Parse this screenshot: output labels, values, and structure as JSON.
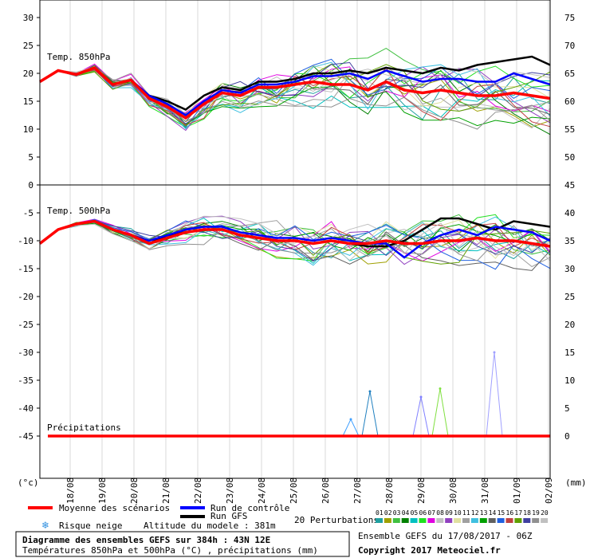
{
  "chart_data": {
    "type": "line",
    "panel_top_label": "Temp. 850hPa",
    "panel_mid_label": "Temp. 500hPa",
    "precip_label": "Précipitations",
    "left_unit": "(°c)",
    "right_unit": "(mm)",
    "left_ticks_top": [
      "30",
      "25",
      "20",
      "15",
      "10",
      "5",
      "0"
    ],
    "left_ticks_bottom": [
      "-5",
      "-10",
      "-15",
      "-20",
      "-25",
      "-30",
      "-35",
      "-40",
      "-45"
    ],
    "right_ticks_top": [
      "75",
      "70",
      "65",
      "60",
      "55",
      "50",
      "45"
    ],
    "right_ticks_bottom": [
      "40",
      "35",
      "30",
      "25",
      "20",
      "15",
      "10",
      "5",
      "0"
    ],
    "x_dates": [
      "18/08",
      "19/08",
      "20/08",
      "21/08",
      "22/08",
      "23/08",
      "24/08",
      "25/08",
      "26/08",
      "27/08",
      "28/08",
      "29/08",
      "30/08",
      "31/08",
      "01/09",
      "02/09"
    ],
    "t850": {
      "mean": [
        18.5,
        20.5,
        19.8,
        21.0,
        18.0,
        18.8,
        15.5,
        14.0,
        12.0,
        14.5,
        16.5,
        16.0,
        17.5,
        17.5,
        18.0,
        18.5,
        18.0,
        18.0,
        17.0,
        18.5,
        17.0,
        16.5,
        17.0,
        16.5,
        16.0,
        16.0,
        16.5,
        16.0,
        15.5
      ],
      "control": [
        18.5,
        20.5,
        19.8,
        21.0,
        18.0,
        18.8,
        16.0,
        14.5,
        12.5,
        15.0,
        17.0,
        16.5,
        18.0,
        18.0,
        18.5,
        19.5,
        19.5,
        20.0,
        19.0,
        20.5,
        19.5,
        18.5,
        19.0,
        19.0,
        18.5,
        18.5,
        20.0,
        19.0,
        18.0
      ],
      "gfs": [
        18.5,
        20.5,
        19.8,
        21.0,
        18.0,
        18.8,
        16.0,
        15.0,
        13.5,
        16.0,
        17.5,
        17.0,
        18.5,
        18.5,
        19.0,
        20.0,
        20.0,
        20.5,
        20.0,
        21.0,
        20.5,
        20.0,
        21.0,
        20.5,
        21.5,
        22.0,
        22.5,
        23.0,
        21.5
      ]
    },
    "t500": {
      "mean": [
        -10.5,
        -8.0,
        -7.0,
        -6.5,
        -8.0,
        -9.0,
        -10.5,
        -9.5,
        -8.5,
        -8.0,
        -8.0,
        -9.0,
        -9.5,
        -10.0,
        -10.0,
        -10.5,
        -10.0,
        -10.5,
        -10.5,
        -10.0,
        -10.5,
        -10.5,
        -10.0,
        -10.0,
        -9.5,
        -10.0,
        -10.0,
        -10.5,
        -11.0
      ],
      "control": [
        -10.5,
        -8.0,
        -7.0,
        -6.5,
        -8.0,
        -9.0,
        -10.0,
        -9.0,
        -8.0,
        -7.5,
        -7.5,
        -8.5,
        -9.0,
        -9.5,
        -9.5,
        -10.0,
        -9.5,
        -10.0,
        -10.5,
        -10.5,
        -13.0,
        -10.5,
        -9.0,
        -8.0,
        -9.0,
        -7.5,
        -8.0,
        -8.5,
        -10.0
      ],
      "gfs": [
        -10.5,
        -8.0,
        -7.0,
        -6.5,
        -8.0,
        -9.0,
        -10.5,
        -9.0,
        -8.5,
        -8.0,
        -8.0,
        -9.0,
        -9.5,
        -10.0,
        -10.0,
        -10.5,
        -10.0,
        -10.5,
        -11.0,
        -11.0,
        -10.0,
        -8.0,
        -6.0,
        -6.0,
        -7.0,
        -8.0,
        -6.5,
        -7.0,
        -7.5
      ]
    },
    "precip_peaks_mm": [
      {
        "day": 9.4,
        "mm": 8.0,
        "color": "#2080c0"
      },
      {
        "day": 11.0,
        "mm": 7.0,
        "color": "#8080ff"
      },
      {
        "day": 11.6,
        "mm": 8.5,
        "color": "#80e040"
      },
      {
        "day": 13.3,
        "mm": 15.0,
        "color": "#a0a0ff"
      },
      {
        "day": 8.8,
        "mm": 3.0,
        "color": "#40a0ff"
      }
    ]
  },
  "legend": {
    "mean_label": "Moyenne des scénarios",
    "control_label": "Run de contrôle",
    "gfs_label": "Run GFS",
    "perturb_label": "20 Perturbations",
    "perturb_numbers": [
      "01",
      "02",
      "03",
      "04",
      "05",
      "06",
      "07",
      "08",
      "09",
      "10",
      "11",
      "12",
      "13",
      "14",
      "15",
      "16",
      "17",
      "18",
      "19",
      "20"
    ],
    "perturb_colors": [
      "#20a0a0",
      "#a0a000",
      "#40c040",
      "#008000",
      "#00c0c0",
      "#20e020",
      "#e000e0",
      "#c0c0c0",
      "#9040c0",
      "#e0e0a0",
      "#a0a0a0",
      "#40c0e0",
      "#00a000",
      "#606060",
      "#2060e0",
      "#c04040",
      "#60a000",
      "#4040a0",
      "#909090",
      "#c0c0c0"
    ],
    "snow_label": "Risque neige",
    "altitude_label": "Altitude du modele : 381m",
    "ensemble_label": "Ensemble GEFS du 17/08/2017 - 06Z"
  },
  "footer": {
    "title": "Diagramme des ensembles GEFS sur 384h : 43N 12E",
    "subtitle": "Températures 850hPa et 500hPa (°C) , précipitations (mm)",
    "copyright": "Copyright 2017 Meteociel.fr"
  }
}
